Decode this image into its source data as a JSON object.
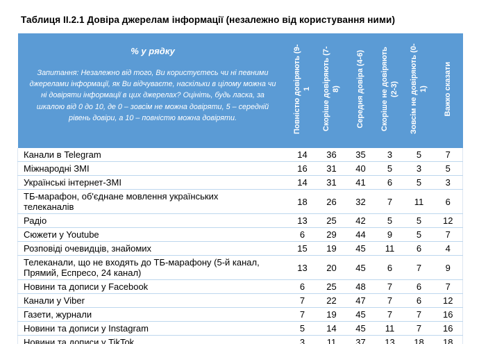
{
  "title": "Таблиця II.2.1 Довіра джерелам інформації (незалежно від користування ними)",
  "colors": {
    "header_bg": "#5b9bd5",
    "header_text": "#ffffff",
    "row_separator": "#bdd7ee",
    "body_text": "#000000"
  },
  "table": {
    "percent_label": "% у рядку",
    "question": "Запитання: Незалежно від того, Ви користуєтесь чи ні певними джерелами інформації, як Ви відчуваєте, наскільки в цілому можна чи ні довіряти інформації в цих джерелах? Оцініть, будь ласка, за шкалою від 0 до 10, де 0 – зовсім не можна довіряти, 5 – середній рівень довіри, а 10 – повністю можна довіряти.",
    "columns": [
      "Повністю довіряють (9-1",
      "Скоріше довіряють (7-8)",
      "Середня довіра (4-6)",
      "Скоріше не довіряють (2-3)",
      "Зовсім не довіряють (0-1)",
      "Важко сказати"
    ],
    "rows": [
      {
        "label": "Канали в Telegram",
        "values": [
          14,
          36,
          35,
          3,
          5,
          7
        ]
      },
      {
        "label": "Міжнародні ЗМІ",
        "values": [
          16,
          31,
          40,
          5,
          3,
          5
        ]
      },
      {
        "label": "Українські інтернет-ЗМІ",
        "values": [
          14,
          31,
          41,
          6,
          5,
          3
        ]
      },
      {
        "label": "ТБ-марафон, об'єднане мовлення українських телеканалів",
        "values": [
          18,
          26,
          32,
          7,
          11,
          6
        ]
      },
      {
        "label": "Радіо",
        "values": [
          13,
          25,
          42,
          5,
          5,
          12
        ]
      },
      {
        "label": "Сюжети у Youtube",
        "values": [
          6,
          29,
          44,
          9,
          5,
          7
        ]
      },
      {
        "label": "Розповіді очевидців, знайомих",
        "values": [
          15,
          19,
          45,
          11,
          6,
          4
        ]
      },
      {
        "label": "Телеканали, що не входять до ТБ-марафону (5-й канал, Прямий, Еспресо, 24 канал)",
        "values": [
          13,
          20,
          45,
          6,
          7,
          9
        ]
      },
      {
        "label": "Новини та дописи у Facebook",
        "values": [
          6,
          25,
          48,
          7,
          6,
          7
        ]
      },
      {
        "label": "Канали у Viber",
        "values": [
          7,
          22,
          47,
          7,
          6,
          12
        ]
      },
      {
        "label": "Газети, журнали",
        "values": [
          7,
          19,
          45,
          7,
          7,
          16
        ]
      },
      {
        "label": "Новини та дописи у Instagram",
        "values": [
          5,
          14,
          45,
          11,
          7,
          16
        ]
      },
      {
        "label": "Новини та дописи у TikTok",
        "values": [
          3,
          11,
          37,
          13,
          18,
          18
        ]
      }
    ]
  }
}
